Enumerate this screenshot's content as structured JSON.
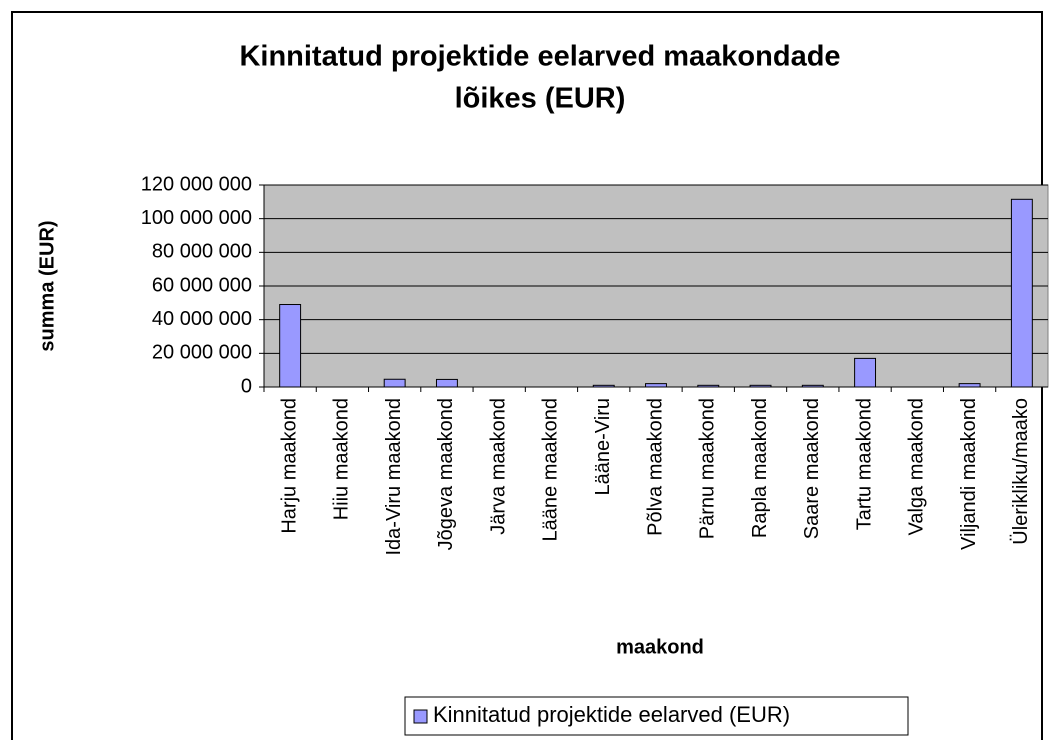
{
  "chart_data": {
    "type": "bar",
    "title": [
      "Kinnitatud projektide eelarved maakondade",
      "lõikes (EUR)"
    ],
    "x_label": "maakond",
    "y_label": "summa (EUR)",
    "categories": [
      "Harju maakond",
      "Hiiu maakond",
      "Ida-Viru maakond",
      "Jõgeva maakond",
      "Järva maakond",
      "Lääne maakond",
      "Lääne-Viru",
      "Põlva maakond",
      "Pärnu maakond",
      "Rapla maakond",
      "Saare maakond",
      "Tartu maakond",
      "Valga maakond",
      "Viljandi maakond",
      "Ülerikliku/maako"
    ],
    "series": [
      {
        "name": "Kinnitatud projektide eelarved (EUR)",
        "color": "#9999ff",
        "values": [
          49000000,
          0,
          4600000,
          4500000,
          0,
          0,
          1000000,
          2000000,
          1000000,
          1000000,
          1000000,
          17000000,
          0,
          2000000,
          111500000
        ]
      }
    ],
    "ylim": [
      0,
      120000000
    ],
    "yticks": [
      0,
      {
        "value": 20000000,
        "label": "20 000 000"
      },
      {
        "value": 40000000,
        "label": "40 000 000"
      },
      {
        "value": 60000000,
        "label": "60 000 000"
      },
      {
        "value": 80000000,
        "label": "80 000 000"
      },
      {
        "value": 100000000,
        "label": "100 000 000"
      },
      {
        "value": 120000000,
        "label": "120 000 000"
      }
    ],
    "grid": true,
    "legend": "bottom"
  }
}
